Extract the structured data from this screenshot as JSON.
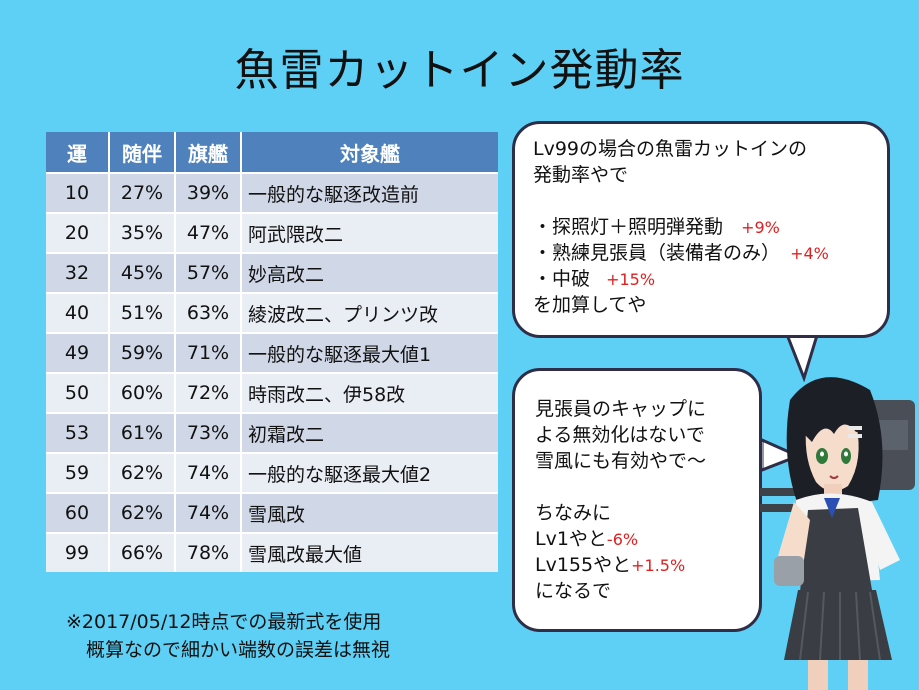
{
  "title": "魚雷カットイン発動率",
  "table": {
    "headers": [
      "運",
      "随伴",
      "旗艦",
      "対象艦"
    ],
    "rows": [
      [
        "10",
        "27%",
        "39%",
        "一般的な駆逐改造前"
      ],
      [
        "20",
        "35%",
        "47%",
        "阿武隈改二"
      ],
      [
        "32",
        "45%",
        "57%",
        "妙高改二"
      ],
      [
        "40",
        "51%",
        "63%",
        "綾波改二、プリンツ改"
      ],
      [
        "49",
        "59%",
        "71%",
        "一般的な駆逐最大値1"
      ],
      [
        "50",
        "60%",
        "72%",
        "時雨改二、伊58改"
      ],
      [
        "53",
        "61%",
        "73%",
        "初霜改二"
      ],
      [
        "59",
        "62%",
        "74%",
        "一般的な駆逐最大値2"
      ],
      [
        "60",
        "62%",
        "74%",
        "雪風改"
      ],
      [
        "99",
        "66%",
        "78%",
        "雪風改最大値"
      ]
    ]
  },
  "note": {
    "line1": "※2017/05/12時点での最新式を使用",
    "line2": "概算なので細かい端数の誤差は無視"
  },
  "bubble1": {
    "line1": "Lv99の場合の魚雷カットインの",
    "line2": "発動率やで",
    "item1": "・探照灯＋照明弾発動",
    "item1_bonus": "+9%",
    "item2": "・熟練見張員（装備者のみ）",
    "item2_bonus": "+4%",
    "item3": "・中破",
    "item3_bonus": "+15%",
    "line_end": "を加算してや"
  },
  "bubble2": {
    "line1": "見張員のキャップに",
    "line2": "よる無効化はないで",
    "line3": "雪風にも有効やで～",
    "line4": "ちなみに",
    "line5_pre": "Lv1やと",
    "line5_val": "-6%",
    "line6_pre": "Lv155やと",
    "line6_val": "+1.5%",
    "line7": "になるで"
  },
  "colors": {
    "background": "#5fd0f5",
    "header": "#4f81bd",
    "row_odd": "#d0d8e8",
    "row_even": "#e9edf4",
    "bonus": "#e02020"
  }
}
